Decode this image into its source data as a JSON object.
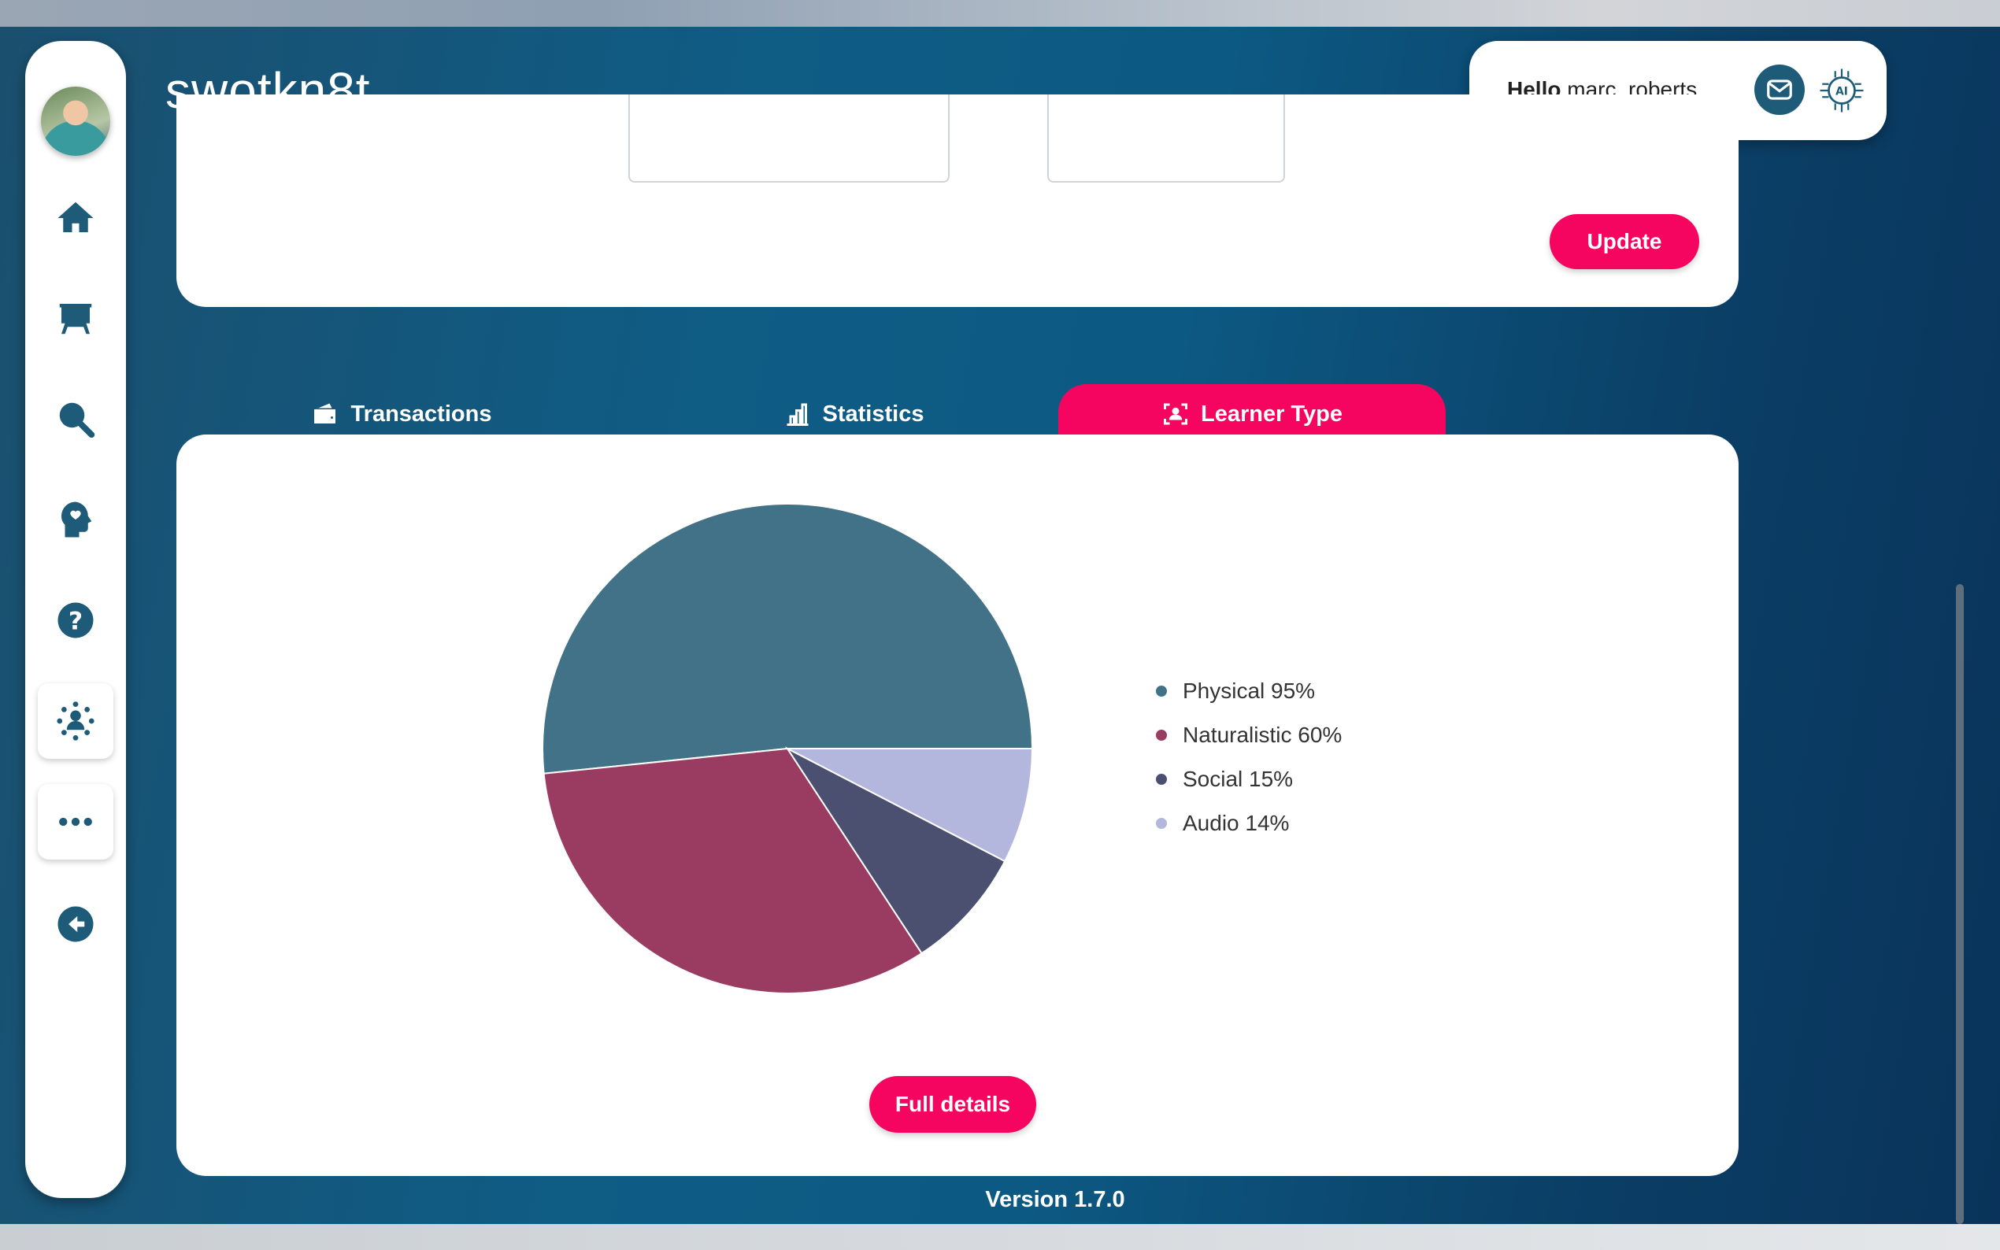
{
  "app": {
    "logo": "swotkn8t",
    "version": "Version 1.7.0"
  },
  "user": {
    "hello_label": "Hello",
    "username": "marc_roberts"
  },
  "sidebar": {
    "items": [
      {
        "icon": "avatar"
      },
      {
        "icon": "home-icon"
      },
      {
        "icon": "presentation-board-icon"
      },
      {
        "icon": "search-icon"
      },
      {
        "icon": "head-heart-icon"
      },
      {
        "icon": "help-icon"
      },
      {
        "icon": "network-users-icon"
      },
      {
        "icon": "more-icon"
      },
      {
        "icon": "logout-icon"
      }
    ]
  },
  "topcard": {
    "update_label": "Update"
  },
  "tabs": [
    {
      "label": "Transactions",
      "icon": "wallet-icon",
      "active": false
    },
    {
      "label": "Statistics",
      "icon": "bar-chart-icon",
      "active": false
    },
    {
      "label": "Learner Type",
      "icon": "person-scan-icon",
      "active": true
    }
  ],
  "main": {
    "full_details_label": "Full details"
  },
  "colors": {
    "accent": "#f5055f",
    "primary": "#1d5b79"
  },
  "chart_data": {
    "type": "pie",
    "title": "",
    "series": [
      {
        "name": "Physical 95%",
        "label": "Physical",
        "percent": 95,
        "value": 95,
        "color": "#417287"
      },
      {
        "name": "Naturalistic 60%",
        "label": "Naturalistic",
        "percent": 60,
        "value": 60,
        "color": "#9a3b61"
      },
      {
        "name": "Social 15%",
        "label": "Social",
        "percent": 15,
        "value": 15,
        "color": "#4b5070"
      },
      {
        "name": "Audio 14%",
        "label": "Audio",
        "percent": 14,
        "value": 14,
        "color": "#b4b7dd"
      }
    ],
    "legend": "right"
  }
}
